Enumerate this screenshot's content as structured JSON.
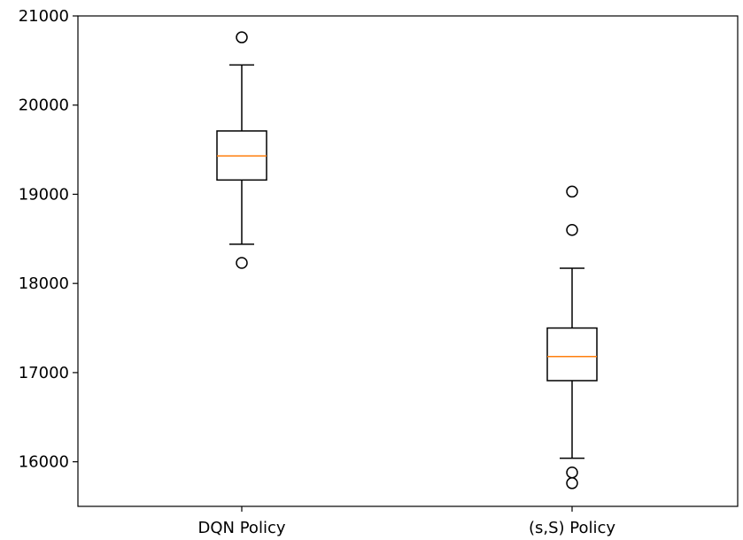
{
  "chart_data": {
    "type": "boxplot",
    "title": "",
    "xlabel": "",
    "ylabel": "",
    "categories": [
      "DQN Policy",
      "(s,S) Policy"
    ],
    "ylim": [
      15500,
      21000
    ],
    "yticks": [
      16000,
      17000,
      18000,
      19000,
      20000,
      21000
    ],
    "ytick_labels": [
      "16000",
      "17000",
      "18000",
      "19000",
      "20000",
      "21000"
    ],
    "grid": false,
    "boxes": [
      {
        "label": "DQN Policy",
        "whisker_low": 18440,
        "q1": 19160,
        "median": 19430,
        "q3": 19710,
        "whisker_high": 20450,
        "outliers": [
          20760,
          18230
        ]
      },
      {
        "label": "(s,S) Policy",
        "whisker_low": 16040,
        "q1": 16910,
        "median": 17180,
        "q3": 17500,
        "whisker_high": 18170,
        "outliers": [
          19030,
          18600,
          15880,
          15760
        ]
      }
    ],
    "colors": {
      "box": "#000000",
      "median": "#ff7f0e",
      "outlier": "#000000"
    }
  }
}
